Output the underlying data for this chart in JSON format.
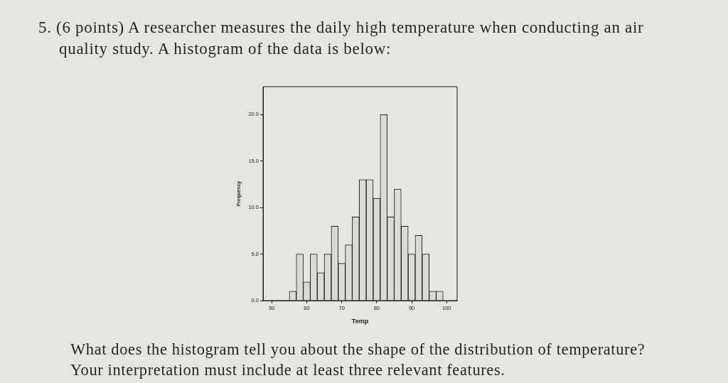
{
  "chart_data": {
    "type": "histogram",
    "title": "5. (6 points) A researcher measures the daily high temperature when conducting an air quality study. A histogram of the data is below:",
    "xlabel": "Temp",
    "ylabel": "Frequency",
    "bins": [
      55,
      57,
      59,
      61,
      63,
      65,
      67,
      69,
      71,
      73,
      75,
      77,
      79,
      81,
      83,
      85,
      87,
      89,
      91,
      93,
      95,
      97,
      99
    ],
    "values": [
      1,
      5,
      2,
      5,
      3,
      5,
      8,
      4,
      6,
      9,
      13,
      13,
      11,
      20,
      9,
      12,
      8,
      5,
      7,
      5,
      1,
      1
    ],
    "color": "#dcdad4",
    "xlim": [
      47.5,
      103
    ],
    "xticks": [
      50,
      60,
      70,
      80,
      90,
      100
    ],
    "ylim": [
      0,
      23
    ],
    "yticks": [
      {
        "value": 0,
        "label": "0.0"
      },
      {
        "value": 5,
        "label": "5.0"
      },
      {
        "value": 10,
        "label": "10.0"
      },
      {
        "value": 15,
        "label": "15.0"
      },
      {
        "value": 20,
        "label": "20.0"
      }
    ],
    "annotations": [
      "What does the histogram tell you about the shape of the distribution of temperature? Your interpretation must include at least three relevant features."
    ]
  }
}
